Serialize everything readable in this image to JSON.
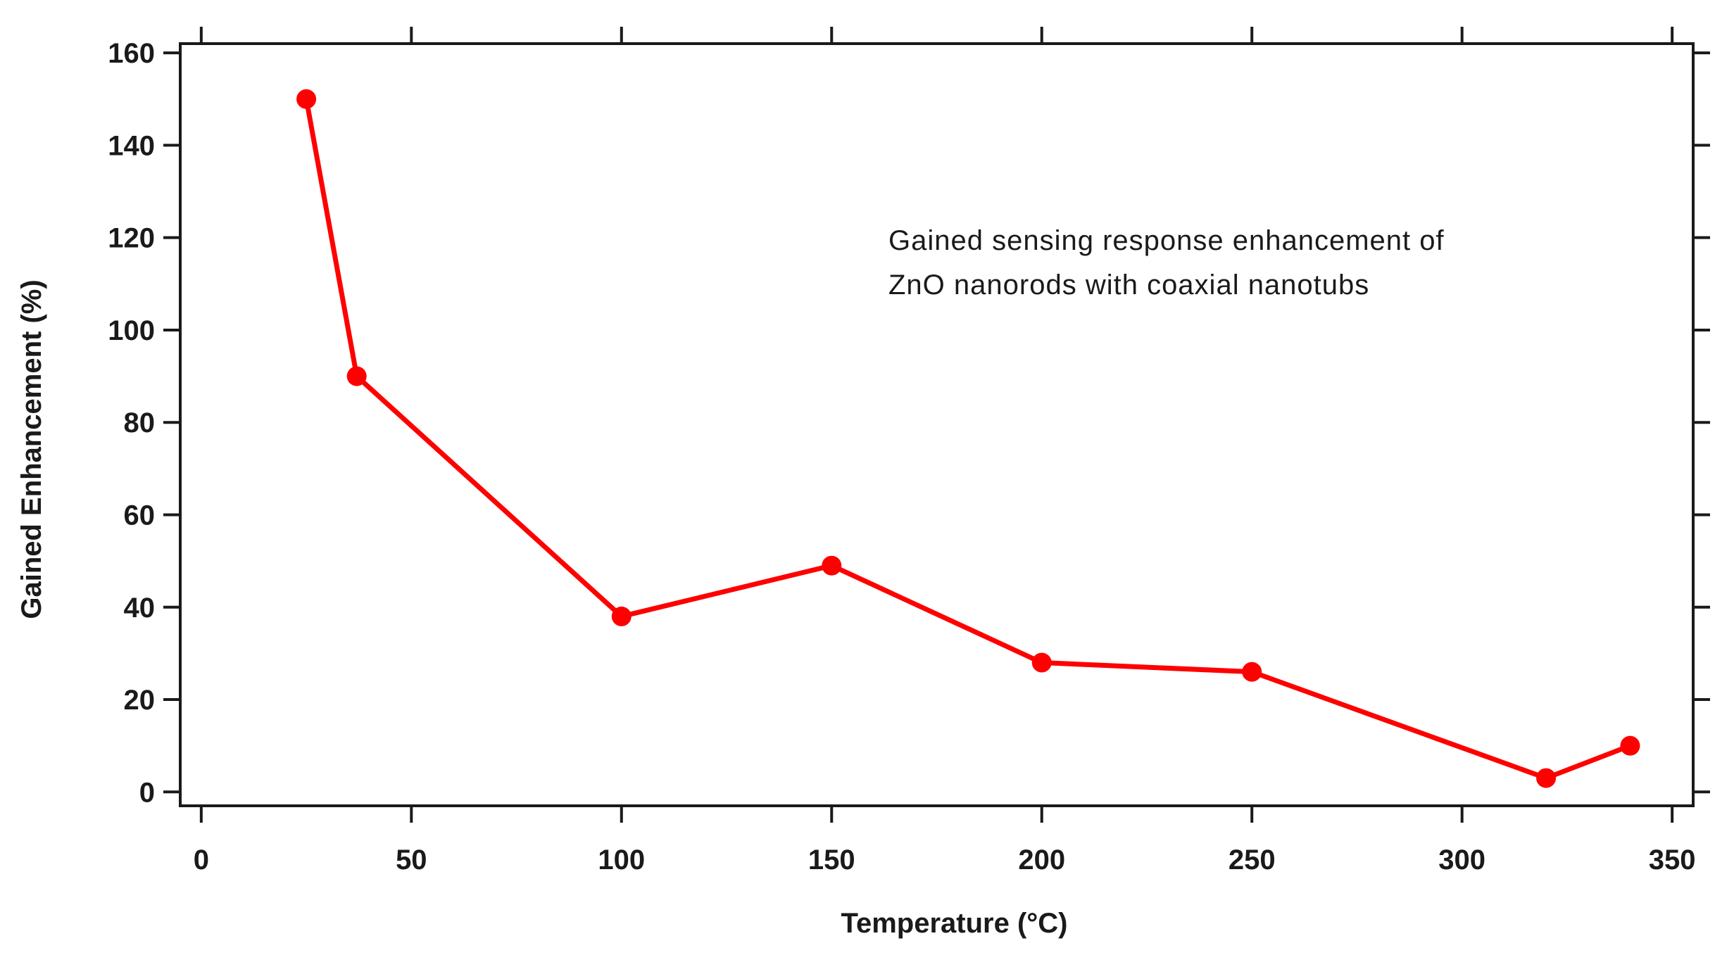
{
  "chart_data": {
    "type": "line",
    "title": "",
    "xlabel": "Temperature (°C)",
    "ylabel": "Gained Enhancement (%)",
    "xlim": [
      -5,
      355
    ],
    "ylim": [
      -3,
      162
    ],
    "xticks": [
      0,
      50,
      100,
      150,
      200,
      250,
      300,
      350
    ],
    "yticks": [
      0,
      20,
      40,
      60,
      80,
      100,
      120,
      140,
      160
    ],
    "grid": false,
    "legend": "none",
    "series": [
      {
        "color": "#ff0000",
        "marker": "circle",
        "x": [
          25,
          37,
          100,
          150,
          200,
          250,
          320,
          340
        ],
        "y": [
          150,
          90,
          38,
          49,
          28,
          26,
          3,
          10
        ]
      }
    ],
    "annotation": {
      "lines": [
        "Gained sensing response enhancement of",
        "ZnO nanorods with coaxial nanotubs"
      ]
    }
  }
}
